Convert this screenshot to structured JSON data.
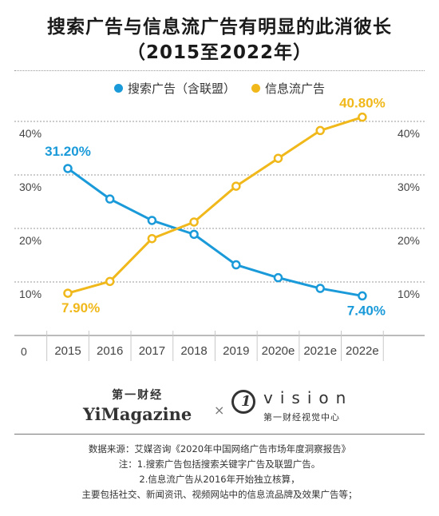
{
  "title_line1": "搜索广告与信息流广告有明显的此消彼长",
  "title_line2": "（2015至2022年）",
  "legend": [
    {
      "name": "搜索广告（含联盟）",
      "color": "#1a9ad9"
    },
    {
      "name": "信息流广告",
      "color": "#f0b81a"
    }
  ],
  "chart_data": {
    "type": "line",
    "categories": [
      "2015",
      "2016",
      "2017",
      "2018",
      "2019",
      "2020e",
      "2021e",
      "2022e"
    ],
    "series": [
      {
        "name": "搜索广告（含联盟）",
        "color": "#1a9ad9",
        "values": [
          31.2,
          25.5,
          21.5,
          18.9,
          13.2,
          10.8,
          8.8,
          7.4
        ]
      },
      {
        "name": "信息流广告",
        "color": "#f0b81a",
        "values": [
          7.9,
          10.1,
          18.1,
          21.2,
          27.9,
          33.1,
          38.3,
          40.8
        ]
      }
    ],
    "data_labels": [
      {
        "series": 0,
        "index": 0,
        "text": "31.20%"
      },
      {
        "series": 1,
        "index": 0,
        "text": "7.90%"
      },
      {
        "series": 1,
        "index": 7,
        "text": "40.80%"
      },
      {
        "series": 0,
        "index": 7,
        "text": "7.40%"
      }
    ],
    "y_ticks": [
      {
        "value": 0,
        "label": "0"
      },
      {
        "value": 10,
        "label": "10%"
      },
      {
        "value": 20,
        "label": "20%"
      },
      {
        "value": 30,
        "label": "30%"
      },
      {
        "value": 40,
        "label": "40%"
      }
    ],
    "ylim": [
      0,
      45
    ],
    "grid": true,
    "legend_position": "top"
  },
  "brand": {
    "left_cn": "第一财经",
    "left_en": "YiMagazine",
    "separator": "×",
    "right_logo": "1",
    "right_en": "vision",
    "right_cn": "第一财经视觉中心"
  },
  "notes": [
    "数据来源：艾媒咨询《2020年中国网络广告市场年度洞察报告》",
    "注：1.搜索广告包括搜索关键字广告及联盟广告。",
    "2.信息流广告从2016年开始独立核算，",
    "主要包括社交、新闻资讯、视频网站中的信息流品牌及效果广告等；"
  ]
}
